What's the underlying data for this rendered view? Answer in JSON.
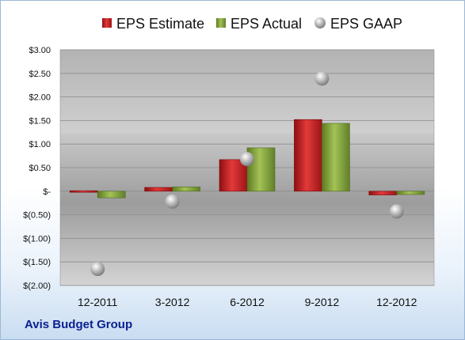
{
  "company": "Avis Budget Group",
  "chart_data": {
    "type": "bar",
    "categories": [
      "12-2011",
      "3-2012",
      "6-2012",
      "9-2012",
      "12-2012"
    ],
    "series": [
      {
        "name": "EPS Estimate",
        "kind": "bar",
        "color": "#c8282a",
        "values": [
          0.01,
          0.08,
          0.67,
          1.52,
          -0.08
        ]
      },
      {
        "name": "EPS Actual",
        "kind": "bar",
        "color": "#86a83a",
        "values": [
          -0.14,
          0.09,
          0.92,
          1.44,
          -0.07
        ]
      },
      {
        "name": "EPS GAAP",
        "kind": "scatter",
        "color": "#b8b8b8",
        "values": [
          -1.65,
          -0.22,
          0.68,
          2.39,
          -0.43
        ]
      }
    ],
    "yticks": [
      "$3.00",
      "$2.50",
      "$2.00",
      "$1.50",
      "$1.00",
      "$0.50",
      "$-",
      "$(0.50)",
      "$(1.00)",
      "$(1.50)",
      "$(2.00)"
    ],
    "ylim": [
      -2,
      3
    ],
    "grid": true,
    "legend": "top"
  }
}
